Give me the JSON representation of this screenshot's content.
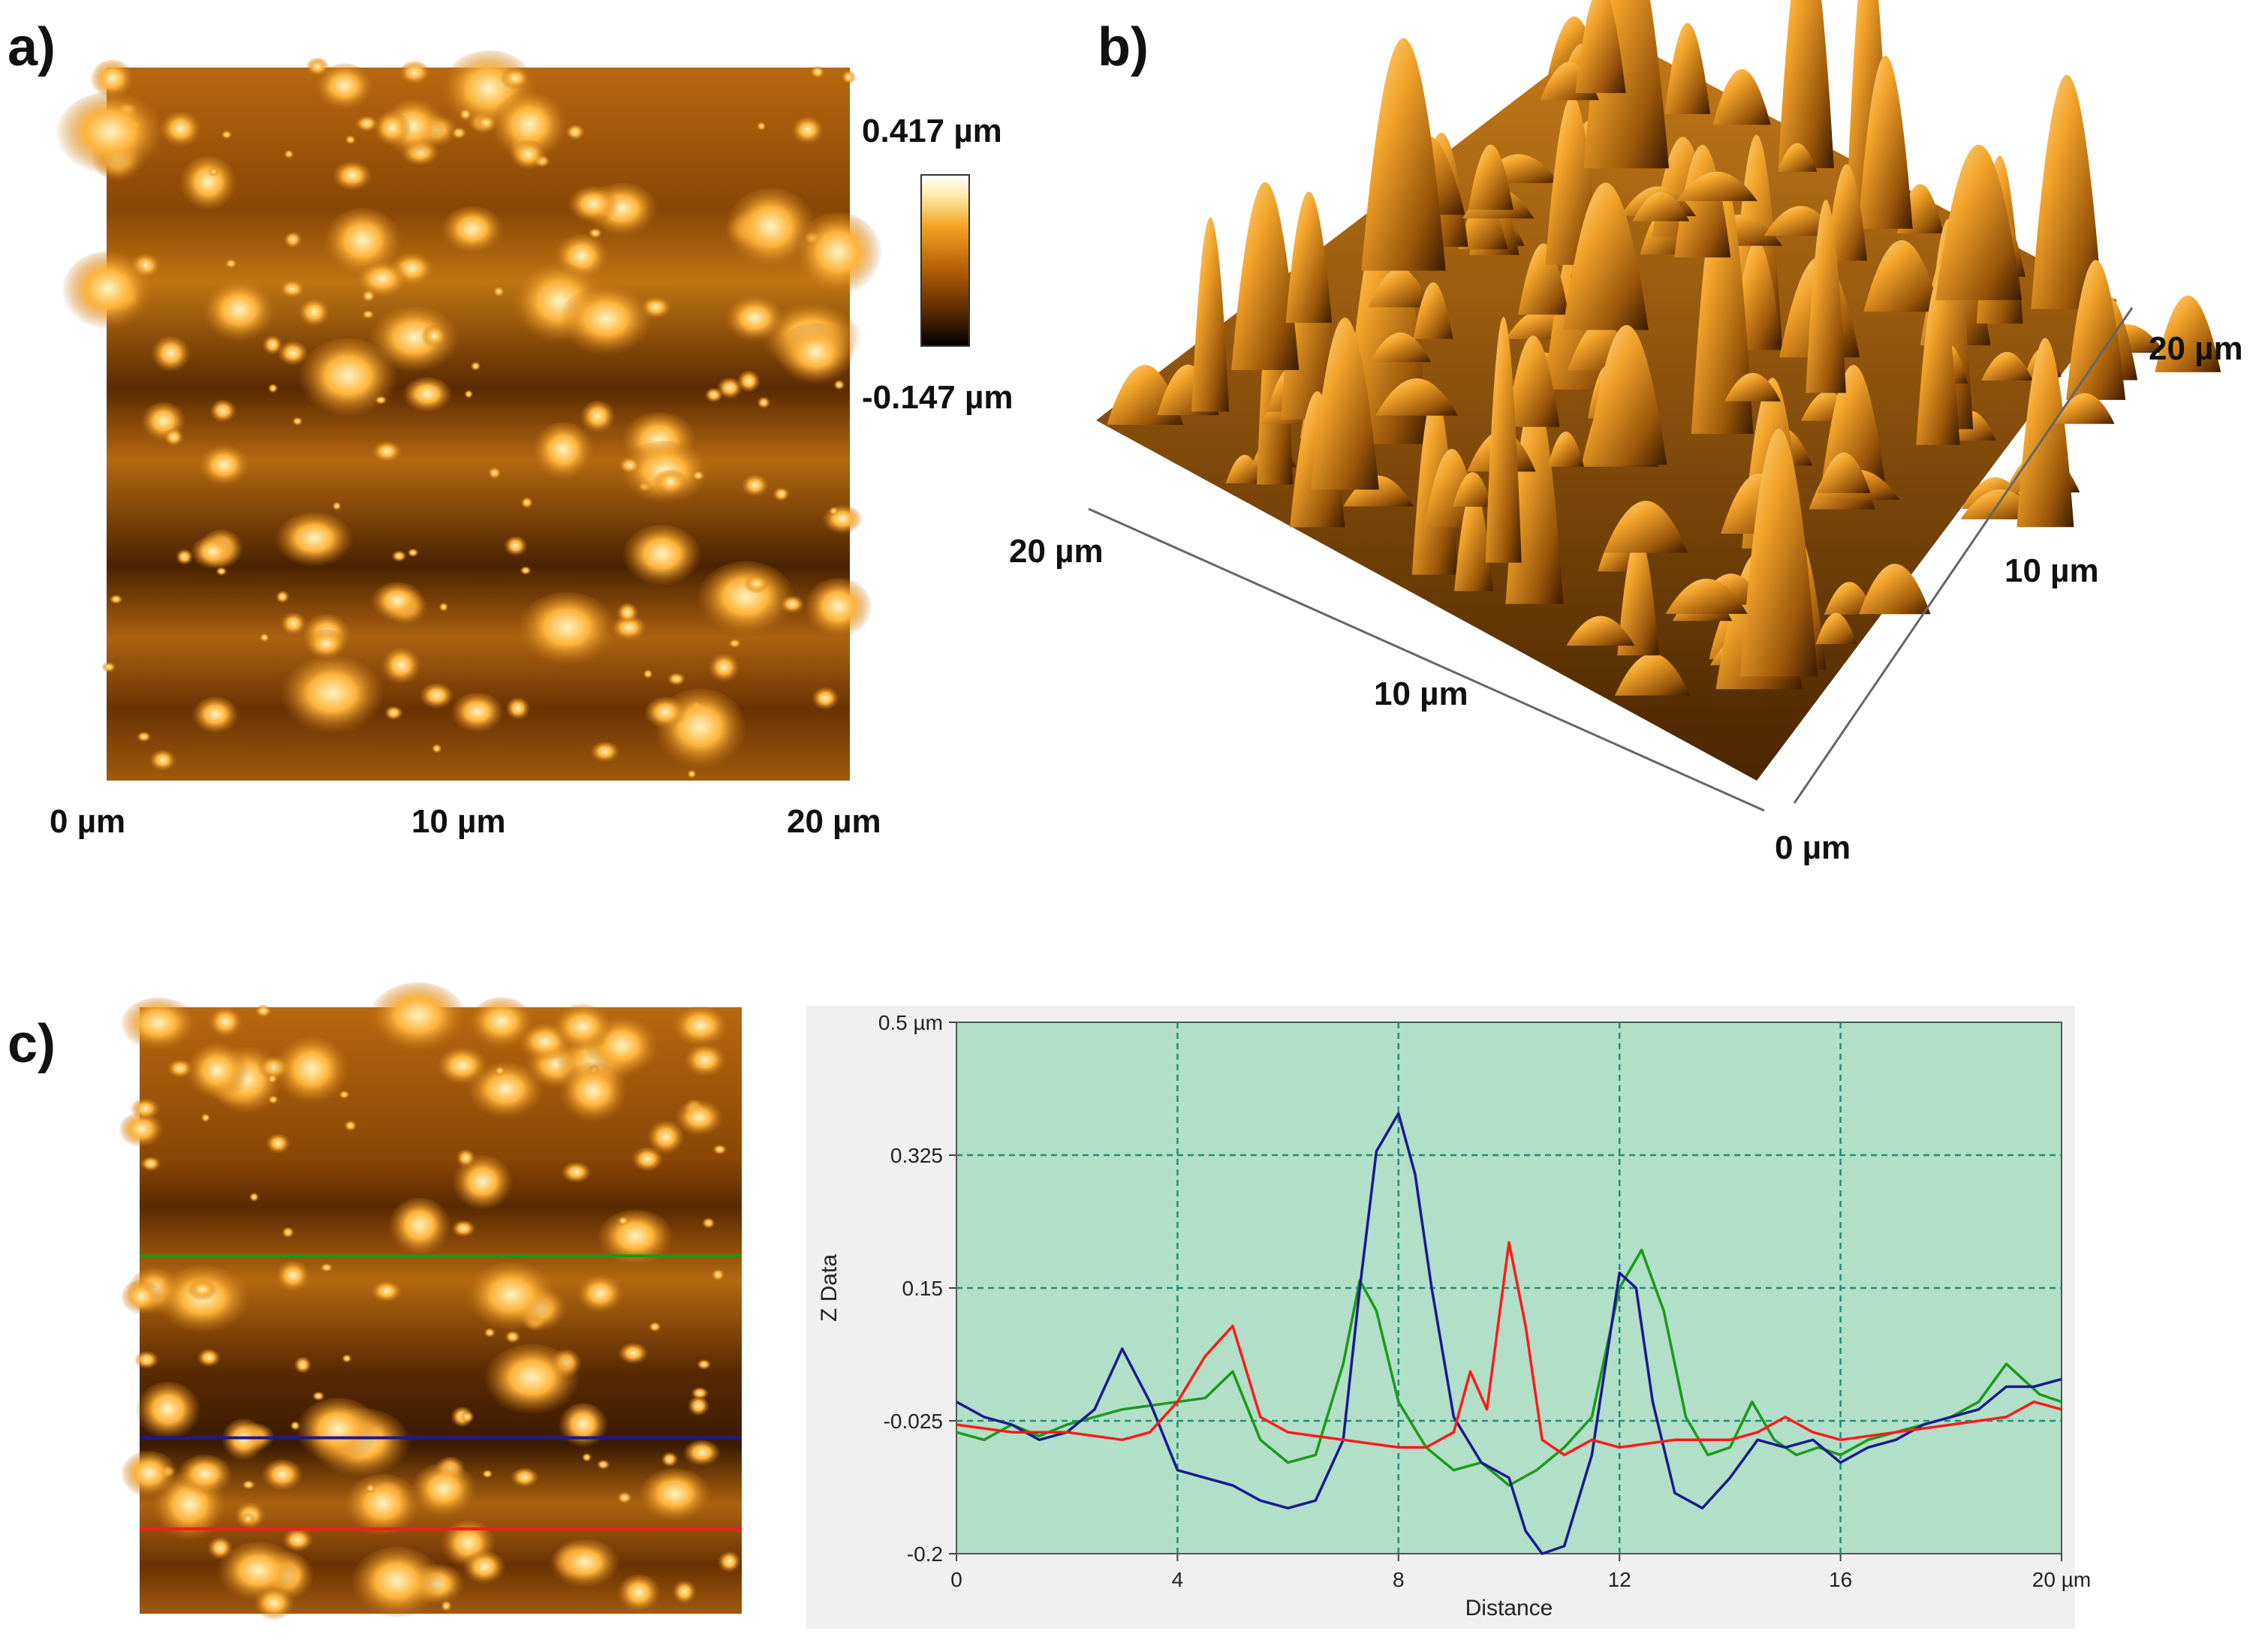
{
  "panels": {
    "a": {
      "label": "a)",
      "x_ticks": [
        "0 µm",
        "10 µm",
        "20 µm"
      ],
      "colorbar": {
        "max_label": "0.417 µm",
        "min_label": "-0.147 µm"
      }
    },
    "b": {
      "label": "b)",
      "axis_labels": [
        "20 µm",
        "10 µm",
        "20 µm",
        "10 µm",
        "0 µm"
      ]
    },
    "c": {
      "label": "c)"
    }
  },
  "colors": {
    "plot_bg": "#b2dfc7",
    "grid": "#1f8f7a",
    "green": "#1a9a1a",
    "blue": "#1a1a8f",
    "red": "#ff1a1a",
    "afm_bright": "#ffd27a",
    "afm_mid": "#c07010",
    "afm_dark": "#3a1a00"
  },
  "chart_data": {
    "type": "line",
    "xlabel": "Distance",
    "ylabel": "Z Data",
    "xlim": [
      0,
      20
    ],
    "ylim": [
      -0.2,
      0.5
    ],
    "x_ticks": [
      0,
      4,
      8,
      12,
      16,
      20
    ],
    "x_tick_labels": [
      "0",
      "4",
      "8",
      "12",
      "16",
      "20 µm"
    ],
    "y_ticks": [
      -0.2,
      -0.025,
      0.15,
      0.325,
      0.5
    ],
    "y_tick_labels": [
      "-0.2",
      "-0.025",
      "0.15",
      "0.325",
      "0.5 µm"
    ],
    "grid": true,
    "series": [
      {
        "name": "green",
        "color": "#1a9a1a",
        "x": [
          0,
          0.5,
          1,
          1.5,
          2,
          2.5,
          3,
          3.5,
          4,
          4.5,
          5,
          5.5,
          6,
          6.5,
          7,
          7.3,
          7.6,
          8,
          8.5,
          9,
          9.5,
          10,
          10.5,
          11,
          11.5,
          12,
          12.4,
          12.8,
          13.2,
          13.6,
          14,
          14.4,
          14.8,
          15.2,
          15.6,
          16,
          16.5,
          17,
          17.5,
          18,
          18.5,
          19,
          19.3,
          19.6,
          20
        ],
        "y": [
          -0.04,
          -0.05,
          -0.03,
          -0.045,
          -0.03,
          -0.02,
          -0.01,
          -0.005,
          0.0,
          0.005,
          0.04,
          -0.05,
          -0.08,
          -0.07,
          0.05,
          0.16,
          0.12,
          0.0,
          -0.06,
          -0.09,
          -0.08,
          -0.11,
          -0.09,
          -0.06,
          -0.02,
          0.15,
          0.2,
          0.12,
          -0.02,
          -0.07,
          -0.06,
          0.0,
          -0.05,
          -0.07,
          -0.06,
          -0.07,
          -0.05,
          -0.04,
          -0.03,
          -0.02,
          0.0,
          0.05,
          0.03,
          0.01,
          0.0
        ]
      },
      {
        "name": "blue",
        "color": "#1a1a8f",
        "x": [
          0,
          0.5,
          1,
          1.5,
          2,
          2.5,
          3,
          3.5,
          4,
          4.5,
          5,
          5.5,
          6,
          6.5,
          7,
          7.3,
          7.6,
          8,
          8.3,
          8.6,
          9,
          9.5,
          10,
          10.3,
          10.6,
          11,
          11.5,
          12,
          12.3,
          12.6,
          13,
          13.5,
          14,
          14.5,
          15,
          15.5,
          16,
          16.5,
          17,
          17.5,
          18,
          18.5,
          19,
          19.5,
          20
        ],
        "y": [
          0.0,
          -0.02,
          -0.03,
          -0.05,
          -0.04,
          -0.01,
          0.07,
          0.0,
          -0.09,
          -0.1,
          -0.11,
          -0.13,
          -0.14,
          -0.13,
          -0.05,
          0.15,
          0.33,
          0.38,
          0.3,
          0.15,
          -0.02,
          -0.08,
          -0.1,
          -0.17,
          -0.2,
          -0.19,
          -0.07,
          0.17,
          0.15,
          0.0,
          -0.12,
          -0.14,
          -0.1,
          -0.05,
          -0.06,
          -0.05,
          -0.08,
          -0.06,
          -0.05,
          -0.03,
          -0.02,
          -0.01,
          0.02,
          0.02,
          0.03
        ]
      },
      {
        "name": "red",
        "color": "#ff1a1a",
        "x": [
          0,
          1,
          2,
          3,
          3.5,
          4,
          4.5,
          5,
          5.5,
          6,
          7,
          8,
          8.5,
          9,
          9.3,
          9.6,
          10,
          10.3,
          10.6,
          11,
          11.5,
          12,
          13,
          14,
          14.5,
          15,
          15.5,
          16,
          17,
          18,
          19,
          19.5,
          20
        ],
        "y": [
          -0.03,
          -0.04,
          -0.04,
          -0.05,
          -0.04,
          0.0,
          0.06,
          0.1,
          -0.02,
          -0.04,
          -0.05,
          -0.06,
          -0.06,
          -0.04,
          0.04,
          -0.01,
          0.21,
          0.1,
          -0.05,
          -0.07,
          -0.05,
          -0.06,
          -0.05,
          -0.05,
          -0.04,
          -0.02,
          -0.04,
          -0.05,
          -0.04,
          -0.03,
          -0.02,
          0.0,
          -0.01
        ]
      }
    ],
    "profile_lines": [
      {
        "name": "green",
        "row_fraction": 0.41,
        "color": "#1a9a1a"
      },
      {
        "name": "blue",
        "row_fraction": 0.71,
        "color": "#1a1a8f"
      },
      {
        "name": "red",
        "row_fraction": 0.86,
        "color": "#ff1a1a"
      }
    ]
  }
}
